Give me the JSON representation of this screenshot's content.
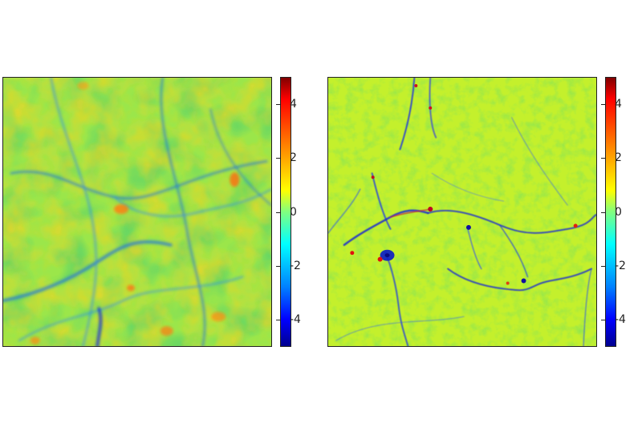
{
  "figure": {
    "panels": [
      {
        "id": "left",
        "colormap": "jet",
        "vmin": -5,
        "vmax": 5,
        "content": "smooth density field with filaments"
      },
      {
        "id": "right",
        "colormap": "jet",
        "vmin": -5,
        "vmax": 5,
        "content": "sharp density field with thin filaments and knots"
      }
    ],
    "colorbar_ticks": [
      {
        "value": 4,
        "label": "4"
      },
      {
        "value": 2,
        "label": "2"
      },
      {
        "value": 0,
        "label": "0"
      },
      {
        "value": -2,
        "label": "-2"
      },
      {
        "value": -4,
        "label": "-4"
      }
    ],
    "colormap_stops": [
      "#00008f",
      "#0000ff",
      "#00ffff",
      "#80ff80",
      "#ffff00",
      "#ff8000",
      "#ff0000",
      "#800000"
    ]
  }
}
